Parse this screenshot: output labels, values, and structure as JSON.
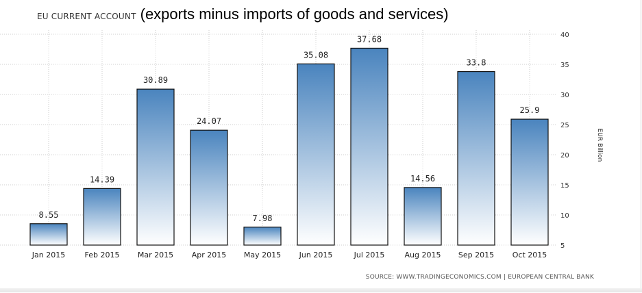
{
  "chart_data": {
    "type": "bar",
    "title": "EU CURRENT ACCOUNT",
    "subtitle": "(exports minus imports of goods and services)",
    "categories": [
      "Jan 2015",
      "Feb 2015",
      "Mar 2015",
      "Apr 2015",
      "May 2015",
      "Jun 2015",
      "Jul 2015",
      "Aug 2015",
      "Sep 2015",
      "Oct 2015"
    ],
    "values": [
      8.55,
      14.39,
      30.89,
      24.07,
      7.98,
      35.08,
      37.68,
      14.56,
      33.8,
      25.9
    ],
    "value_labels": [
      "8.55",
      "14.39",
      "30.89",
      "24.07",
      "7.98",
      "35.08",
      "37.68",
      "14.56",
      "33.8",
      "25.9"
    ],
    "xlabel": "",
    "ylabel": "EUR Billion",
    "ylim": [
      5,
      40
    ],
    "yticks": [
      5,
      10,
      15,
      20,
      25,
      30,
      35,
      40
    ],
    "y_axis_side": "right",
    "grid": true,
    "legend": false,
    "bar_color_top": "#4a84be",
    "bar_color_bottom": "#ffffff",
    "bar_border": "#111111",
    "source": "SOURCE: WWW.TRADINGECONOMICS.COM | EUROPEAN CENTRAL BANK"
  }
}
